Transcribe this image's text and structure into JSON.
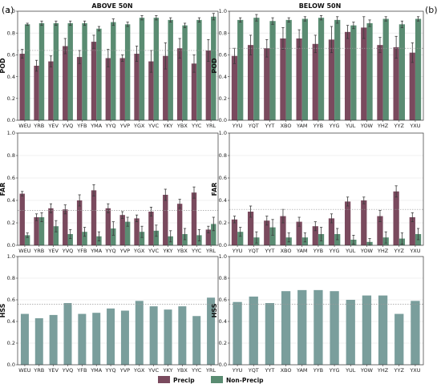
{
  "panel_labels": {
    "left": "(a)",
    "right": "(b)"
  },
  "column_titles": {
    "left": "ABOVE 50N",
    "right": "BELOW 50N"
  },
  "legend": {
    "items": [
      "Precip",
      "Non-Precip"
    ],
    "colors": [
      "#7a4a5e",
      "#5a8c72"
    ]
  },
  "colors": {
    "precip": "#7a4a5e",
    "nonprecip": "#5a8c72",
    "hss": "#7a9e9c"
  },
  "chart_data": [
    {
      "id": "pod-above",
      "type": "bar",
      "ylabel": "POD",
      "ylim": [
        0,
        1.0
      ],
      "yticks": [
        0.0,
        0.2,
        0.4,
        0.6,
        0.8,
        1.0
      ],
      "grid": "y",
      "ref_line": 0.64,
      "categories": [
        "WEU",
        "YRB",
        "YEV",
        "YVQ",
        "YFB",
        "YMA",
        "YYQ",
        "YVP",
        "YGX",
        "YVC",
        "YKY",
        "YBX",
        "YYC",
        "YRL"
      ],
      "series": [
        {
          "name": "Precip",
          "values": [
            0.61,
            0.5,
            0.54,
            0.68,
            0.58,
            0.72,
            0.57,
            0.57,
            0.61,
            0.54,
            0.59,
            0.66,
            0.52,
            0.64
          ],
          "err": [
            0.04,
            0.05,
            0.05,
            0.07,
            0.06,
            0.06,
            0.08,
            0.03,
            0.07,
            0.1,
            0.12,
            0.09,
            0.08,
            0.1
          ]
        },
        {
          "name": "Non-Precip",
          "values": [
            0.88,
            0.89,
            0.89,
            0.89,
            0.89,
            0.84,
            0.9,
            0.88,
            0.94,
            0.94,
            0.92,
            0.87,
            0.92,
            0.95
          ],
          "err": [
            0.01,
            0.02,
            0.02,
            0.02,
            0.02,
            0.02,
            0.03,
            0.02,
            0.02,
            0.02,
            0.02,
            0.02,
            0.02,
            0.03
          ]
        }
      ]
    },
    {
      "id": "pod-below",
      "type": "bar",
      "ylabel": "POD",
      "ylim": [
        0,
        1.0
      ],
      "yticks": [
        0.0,
        0.2,
        0.4,
        0.6,
        0.8,
        1.0
      ],
      "grid": "y",
      "ref_line": 0.66,
      "categories": [
        "YYU",
        "YQT",
        "YYT",
        "XBO",
        "YAM",
        "YYB",
        "YYG",
        "YUL",
        "YOW",
        "YHZ",
        "YYZ",
        "YXU"
      ],
      "series": [
        {
          "name": "Precip",
          "values": [
            0.59,
            0.69,
            0.66,
            0.75,
            0.75,
            0.7,
            0.74,
            0.81,
            0.85,
            0.69,
            0.67,
            0.62
          ],
          "err": [
            0.07,
            0.09,
            0.08,
            0.1,
            0.08,
            0.08,
            0.12,
            0.06,
            0.1,
            0.07,
            0.1,
            0.09
          ]
        },
        {
          "name": "Non-Precip",
          "values": [
            0.92,
            0.94,
            0.91,
            0.92,
            0.93,
            0.94,
            0.92,
            0.87,
            0.89,
            0.93,
            0.88,
            0.93
          ],
          "err": [
            0.02,
            0.03,
            0.03,
            0.02,
            0.02,
            0.02,
            0.03,
            0.03,
            0.03,
            0.02,
            0.03,
            0.02
          ]
        }
      ]
    },
    {
      "id": "far-above",
      "type": "bar",
      "ylabel": "FAR",
      "ylim": [
        0,
        1.0
      ],
      "yticks": [
        0.0,
        0.2,
        0.4,
        0.6,
        0.8,
        1.0
      ],
      "grid": "y",
      "ref_line": 0.31,
      "categories": [
        "WEU",
        "YRB",
        "YEV",
        "YVQ",
        "YFB",
        "YMA",
        "YYQ",
        "YVP",
        "YGX",
        "YVC",
        "YKY",
        "YBX",
        "YYC",
        "YRL"
      ],
      "series": [
        {
          "name": "Precip",
          "values": [
            0.46,
            0.25,
            0.33,
            0.32,
            0.4,
            0.49,
            0.33,
            0.27,
            0.24,
            0.3,
            0.45,
            0.37,
            0.47,
            0.14
          ],
          "err": [
            0.02,
            0.03,
            0.04,
            0.04,
            0.05,
            0.05,
            0.04,
            0.03,
            0.03,
            0.04,
            0.05,
            0.04,
            0.05,
            0.03
          ]
        },
        {
          "name": "Non-Precip",
          "values": [
            0.09,
            0.25,
            0.17,
            0.1,
            0.12,
            0.08,
            0.15,
            0.21,
            0.12,
            0.13,
            0.08,
            0.1,
            0.09,
            0.19
          ],
          "err": [
            0.02,
            0.04,
            0.05,
            0.04,
            0.04,
            0.04,
            0.06,
            0.04,
            0.05,
            0.05,
            0.05,
            0.05,
            0.05,
            0.06
          ]
        }
      ]
    },
    {
      "id": "far-below",
      "type": "bar",
      "ylabel": "FAR",
      "ylim": [
        0,
        1.0
      ],
      "yticks": [
        0.0,
        0.2,
        0.4,
        0.6,
        0.8,
        1.0
      ],
      "grid": "y",
      "ref_line": 0.32,
      "categories": [
        "YYU",
        "YQT",
        "YYT",
        "XBO",
        "YAM",
        "YYB",
        "YYG",
        "YUL",
        "YOW",
        "YHZ",
        "YYZ",
        "YXU"
      ],
      "series": [
        {
          "name": "Precip",
          "values": [
            0.23,
            0.3,
            0.22,
            0.26,
            0.21,
            0.17,
            0.24,
            0.39,
            0.4,
            0.26,
            0.48,
            0.25
          ],
          "err": [
            0.03,
            0.05,
            0.04,
            0.06,
            0.04,
            0.04,
            0.04,
            0.04,
            0.03,
            0.05,
            0.05,
            0.04
          ]
        },
        {
          "name": "Non-Precip",
          "values": [
            0.12,
            0.07,
            0.16,
            0.07,
            0.07,
            0.1,
            0.1,
            0.05,
            0.03,
            0.07,
            0.06,
            0.1
          ],
          "err": [
            0.04,
            0.05,
            0.07,
            0.04,
            0.04,
            0.06,
            0.05,
            0.04,
            0.03,
            0.05,
            0.05,
            0.05
          ]
        }
      ]
    },
    {
      "id": "hss-above",
      "type": "bar",
      "ylabel": "HSS",
      "ylim": [
        0,
        1.0
      ],
      "yticks": [
        0.0,
        0.2,
        0.4,
        0.6,
        0.8,
        1.0
      ],
      "grid": "y",
      "ref_line": 0.56,
      "categories": [
        "WEU",
        "YRB",
        "YEV",
        "YVQ",
        "YFB",
        "YMA",
        "YYQ",
        "YVP",
        "YGX",
        "YVC",
        "YKY",
        "YBX",
        "YYC",
        "YRL"
      ],
      "series": [
        {
          "name": "",
          "values": [
            0.47,
            0.43,
            0.46,
            0.57,
            0.47,
            0.48,
            0.52,
            0.5,
            0.59,
            0.54,
            0.51,
            0.54,
            0.45,
            0.62
          ]
        }
      ]
    },
    {
      "id": "hss-below",
      "type": "bar",
      "ylabel": "HSS",
      "ylim": [
        0,
        1.0
      ],
      "yticks": [
        0.0,
        0.2,
        0.4,
        0.6,
        0.8,
        1.0
      ],
      "grid": "y",
      "ref_line": 0.56,
      "categories": [
        "YYU",
        "YQT",
        "YYT",
        "XBO",
        "YAM",
        "YYB",
        "YYG",
        "YUL",
        "YOW",
        "YHZ",
        "YYZ",
        "YXU"
      ],
      "series": [
        {
          "name": "",
          "values": [
            0.58,
            0.63,
            0.57,
            0.68,
            0.69,
            0.69,
            0.68,
            0.6,
            0.64,
            0.64,
            0.47,
            0.59
          ]
        }
      ]
    }
  ]
}
